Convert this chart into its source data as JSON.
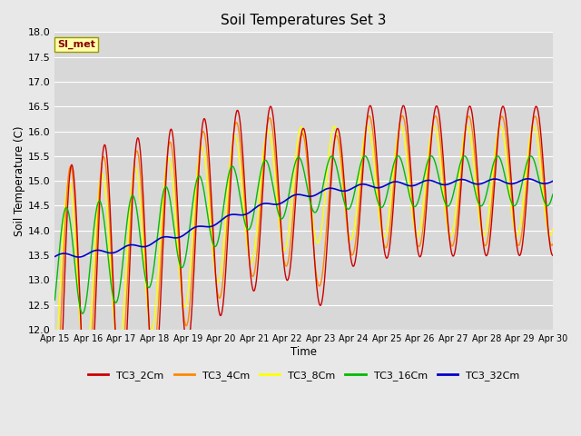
{
  "title": "Soil Temperatures Set 3",
  "xlabel": "Time",
  "ylabel": "Soil Temperature (C)",
  "ylim": [
    12.0,
    18.0
  ],
  "yticks": [
    12.0,
    12.5,
    13.0,
    13.5,
    14.0,
    14.5,
    15.0,
    15.5,
    16.0,
    16.5,
    17.0,
    17.5,
    18.0
  ],
  "xtick_labels": [
    "Apr 15",
    "Apr 16",
    "Apr 17",
    "Apr 18",
    "Apr 19",
    "Apr 20",
    "Apr 21",
    "Apr 22",
    "Apr 23",
    "Apr 24",
    "Apr 25",
    "Apr 26",
    "Apr 27",
    "Apr 28",
    "Apr 29",
    "Apr 30"
  ],
  "colors": {
    "TC3_2Cm": "#cc0000",
    "TC3_4Cm": "#ff8800",
    "TC3_8Cm": "#ffff00",
    "TC3_16Cm": "#00bb00",
    "TC3_32Cm": "#0000cc"
  },
  "legend_label": "SI_met",
  "fig_bg": "#e8e8e8",
  "plot_bg": "#d8d8d8",
  "n_points": 1440,
  "days": 15
}
